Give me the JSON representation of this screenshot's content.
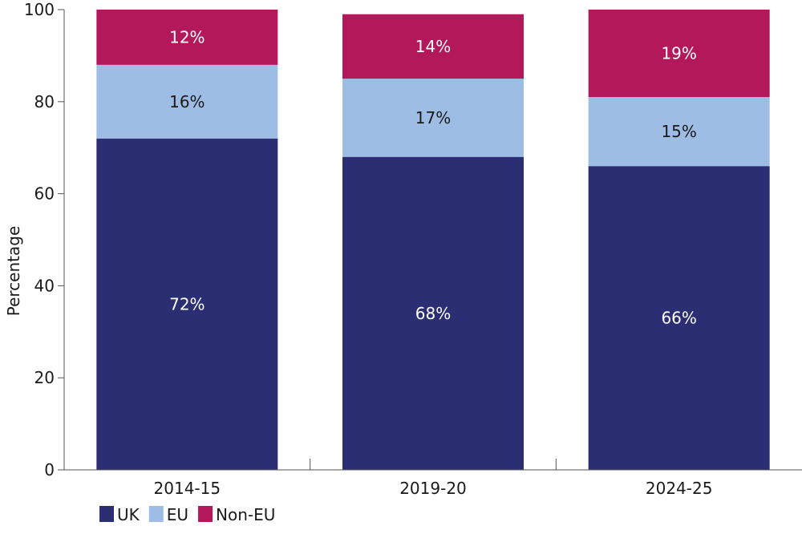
{
  "chart_data": {
    "type": "bar",
    "stacked": true,
    "categories": [
      "2014-15",
      "2019-20",
      "2024-25"
    ],
    "series": [
      {
        "name": "UK",
        "values": [
          72,
          68,
          66
        ],
        "color": "#2b2e73",
        "label_color": "#ffffff"
      },
      {
        "name": "EU",
        "values": [
          16,
          17,
          15
        ],
        "color": "#9dbde4",
        "label_color": "#1a1a1a"
      },
      {
        "name": "Non-EU",
        "values": [
          12,
          14,
          19
        ],
        "color": "#b3185a",
        "label_color": "#ffffff"
      }
    ],
    "data_labels": [
      [
        "72%",
        "68%",
        "66%"
      ],
      [
        "16%",
        "17%",
        "15%"
      ],
      [
        "12%",
        "14%",
        "19%"
      ]
    ],
    "ylabel": "Percentage",
    "xlabel": "",
    "ylim": [
      0,
      100
    ],
    "yticks": [
      0,
      20,
      40,
      60,
      80,
      100
    ],
    "grid": false,
    "legend_position": "bottom-left"
  }
}
